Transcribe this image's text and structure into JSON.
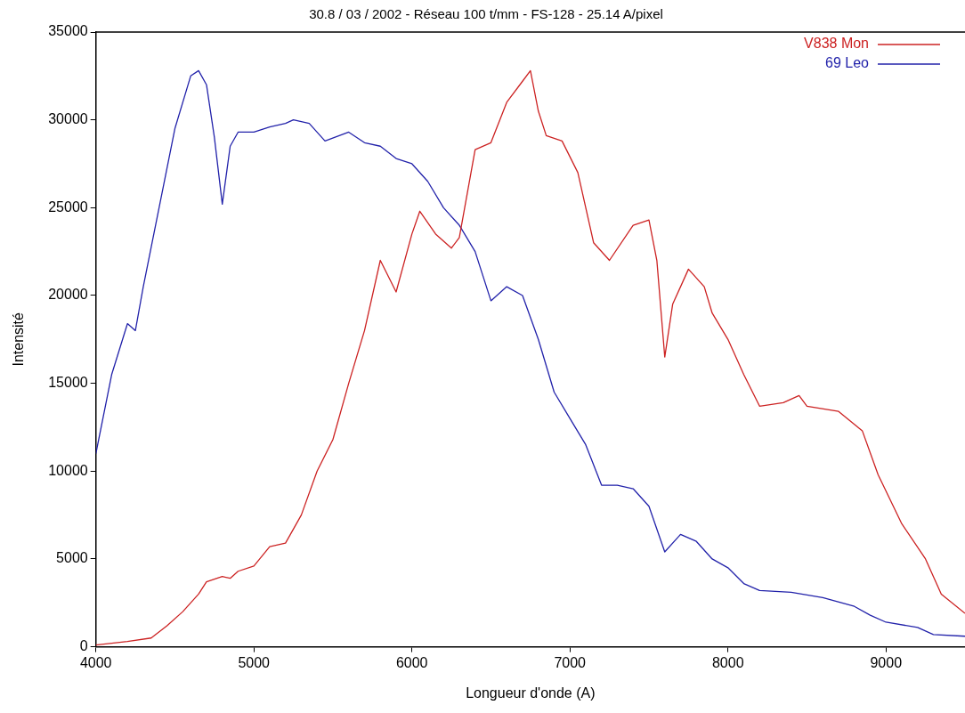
{
  "chart_data": {
    "type": "line",
    "title": "30.8 / 03 / 2002 - Réseau 100 t/mm - FS-128 - 25.14 A/pixel",
    "xlabel": "Longueur d'onde (A)",
    "ylabel": "Intensité",
    "xlim": [
      4000,
      9500
    ],
    "xticks": [
      4000,
      5000,
      6000,
      7000,
      8000,
      9000
    ],
    "ylim": [
      0,
      35000
    ],
    "yticks": [
      0,
      5000,
      10000,
      15000,
      20000,
      25000,
      30000,
      35000
    ],
    "grid": false,
    "legend": "top right",
    "marker": "none",
    "line_style": "solid",
    "series": [
      {
        "name": "V838 Mon",
        "color": "#cc2222",
        "x": [
          4000,
          4200,
          4350,
          4450,
          4550,
          4650,
          4700,
          4800,
          4850,
          4900,
          5000,
          5100,
          5200,
          5300,
          5400,
          5500,
          5600,
          5700,
          5800,
          5900,
          6000,
          6050,
          6150,
          6250,
          6300,
          6400,
          6500,
          6600,
          6700,
          6750,
          6800,
          6850,
          6950,
          7050,
          7150,
          7250,
          7400,
          7500,
          7550,
          7600,
          7650,
          7750,
          7850,
          7900,
          8000,
          8100,
          8200,
          8350,
          8450,
          8500,
          8700,
          8850,
          8950,
          9100,
          9250,
          9350,
          9500
        ],
        "values": [
          100,
          300,
          500,
          1200,
          2000,
          3000,
          3700,
          4000,
          3900,
          4300,
          4600,
          5700,
          5900,
          7500,
          10000,
          11800,
          15000,
          18000,
          22000,
          20200,
          23500,
          24800,
          23500,
          22700,
          23300,
          28300,
          28700,
          31000,
          32200,
          32800,
          30500,
          29100,
          28800,
          27000,
          23000,
          22000,
          24000,
          24300,
          22000,
          16500,
          19500,
          21500,
          20500,
          19000,
          17500,
          15500,
          13700,
          13900,
          14300,
          13700,
          13400,
          12300,
          9800,
          7000,
          5000,
          3000,
          1900
        ]
      },
      {
        "name": "69 Leo",
        "color": "#2222aa",
        "x": [
          4000,
          4100,
          4200,
          4250,
          4300,
          4400,
          4500,
          4600,
          4650,
          4700,
          4750,
          4800,
          4850,
          4900,
          5000,
          5100,
          5200,
          5250,
          5350,
          5450,
          5600,
          5700,
          5800,
          5900,
          6000,
          6100,
          6200,
          6300,
          6400,
          6500,
          6600,
          6700,
          6800,
          6900,
          7000,
          7100,
          7200,
          7300,
          7400,
          7500,
          7600,
          7700,
          7800,
          7900,
          8000,
          8100,
          8200,
          8400,
          8600,
          8800,
          8900,
          9000,
          9200,
          9300,
          9500
        ],
        "values": [
          11000,
          15500,
          18400,
          18000,
          20500,
          25000,
          29500,
          32500,
          32800,
          32000,
          29000,
          25200,
          28500,
          29300,
          29300,
          29600,
          29800,
          30000,
          29800,
          28800,
          29300,
          28700,
          28500,
          27800,
          27500,
          26500,
          25000,
          24000,
          22500,
          19700,
          20500,
          20000,
          17500,
          14500,
          13000,
          11500,
          9200,
          9200,
          9000,
          8000,
          5400,
          6400,
          6000,
          5000,
          4500,
          3600,
          3200,
          3100,
          2800,
          2300,
          1800,
          1400,
          1100,
          700,
          600
        ]
      }
    ]
  }
}
